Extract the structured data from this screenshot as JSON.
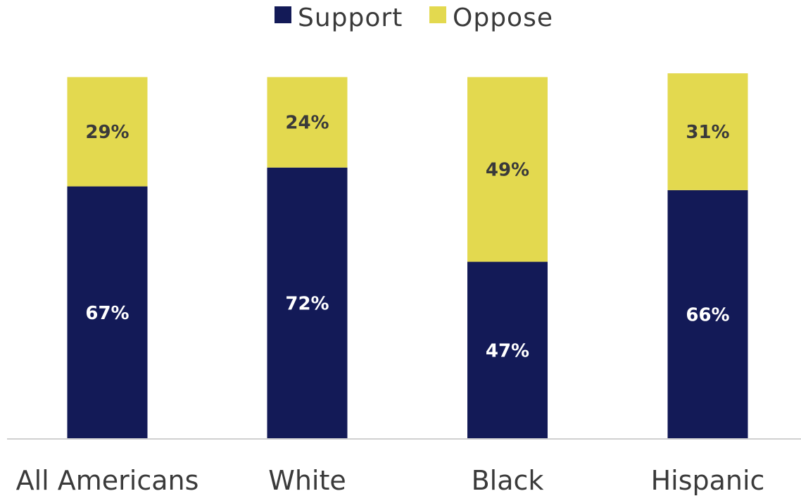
{
  "chart_data": {
    "type": "bar",
    "stacked": true,
    "categories": [
      "All Americans",
      "White",
      "Black",
      "Hispanic"
    ],
    "series": [
      {
        "name": "Support",
        "values": [
          67,
          72,
          47,
          66
        ],
        "labels": [
          "67%",
          "72%",
          "47%",
          "66%"
        ],
        "color": "#131a57"
      },
      {
        "name": "Oppose",
        "values": [
          29,
          24,
          49,
          31
        ],
        "labels": [
          "29%",
          "24%",
          "49%",
          "31%"
        ],
        "color": "#e3d94f"
      }
    ],
    "title": "",
    "xlabel": "",
    "ylabel": "",
    "ylim": [
      0,
      100
    ],
    "grid": false,
    "legend": "top-center"
  },
  "colors": {
    "support_label": "#ffffff",
    "oppose_label": "#3a3a3a",
    "axis": "#d0d0d0"
  }
}
